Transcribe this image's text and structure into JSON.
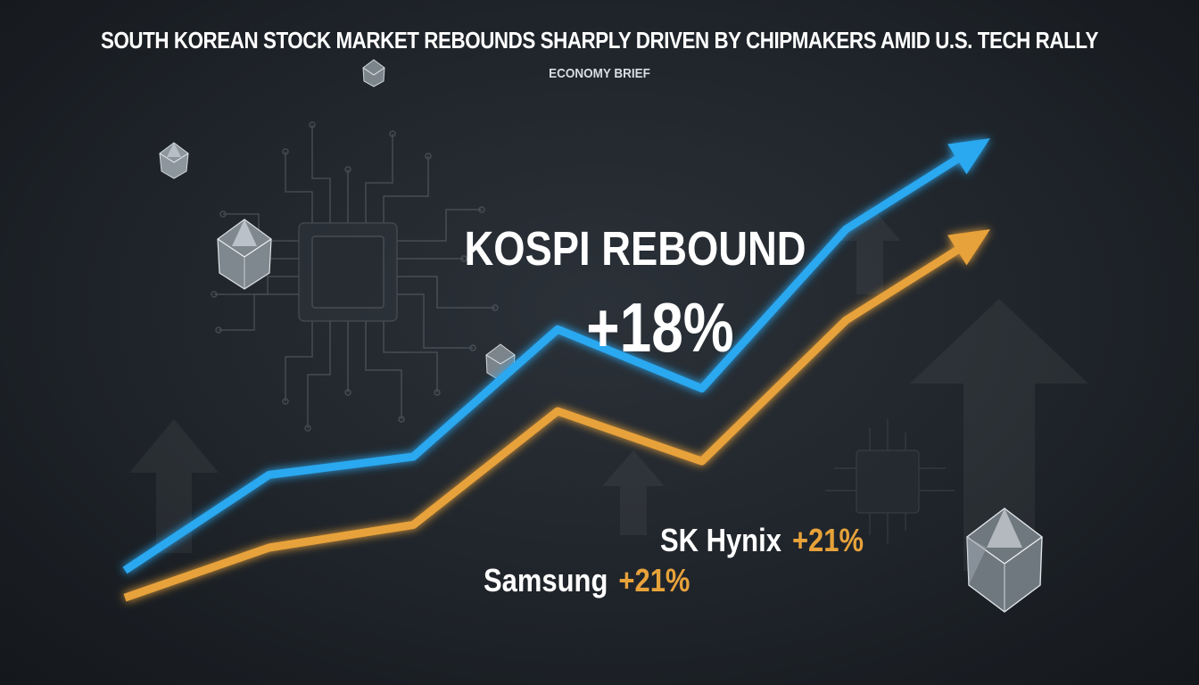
{
  "headline": "SOUTH KOREAN STOCK MARKET REBOUNDS SHARPLY DRIVEN BY CHIPMAKERS AMID U.S. TECH RALLY",
  "kicker": "ECONOMY BRIEF",
  "callout": {
    "label": "KOSPI REBOUND",
    "value": "+18%"
  },
  "labels": [
    {
      "name": "SK Hynix",
      "value": "+21%"
    },
    {
      "name": "Samsung",
      "value": "+21%"
    }
  ],
  "colors": {
    "background": "#1f242a",
    "kospi_line": "#29a8f0",
    "samsung_line": "#e8a23a",
    "text": "#ffffff"
  },
  "icons": [
    "circuit-chip-graphic",
    "diamond-crystal-icon",
    "up-arrow-icon"
  ],
  "chart_data": {
    "type": "line",
    "title": "",
    "xlabel": "",
    "ylabel": "",
    "grid": false,
    "legend": "none",
    "x": [
      0,
      1,
      2,
      3,
      4,
      5,
      6
    ],
    "ylim": [
      0,
      100
    ],
    "series": [
      {
        "name": "",
        "values": [
          5,
          26,
          30,
          58,
          45,
          80,
          100
        ],
        "color": "#29a8f0"
      },
      {
        "name": "",
        "values": [
          -1,
          10,
          15,
          40,
          29,
          60,
          80
        ],
        "color": "#e8a23a"
      }
    ]
  }
}
